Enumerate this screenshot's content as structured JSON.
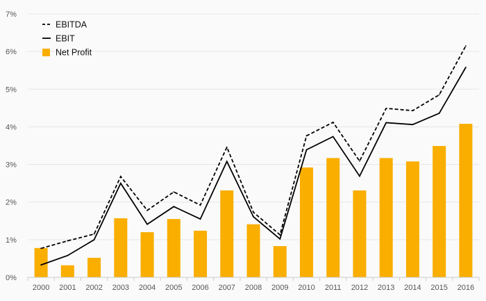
{
  "chart_data": {
    "type": "bar+line",
    "title": "",
    "xlabel": "",
    "ylabel": "",
    "categories": [
      "2000",
      "2001",
      "2002",
      "2003",
      "2004",
      "2005",
      "2006",
      "2007",
      "2008",
      "2009",
      "2010",
      "2011",
      "2012",
      "2013",
      "2014",
      "2015",
      "2016"
    ],
    "ylim": [
      0,
      7
    ],
    "yticks": [
      "0%",
      "1%",
      "2%",
      "3%",
      "4%",
      "5%",
      "6%",
      "7%"
    ],
    "grid": true,
    "legend_position": "top-left",
    "series": [
      {
        "name": "EBITDA",
        "kind": "line",
        "style": "dashed",
        "color": "#000000",
        "values": [
          0.77,
          0.97,
          1.15,
          2.68,
          1.78,
          2.27,
          1.92,
          3.46,
          1.73,
          1.13,
          3.76,
          4.12,
          3.09,
          4.49,
          4.43,
          4.85,
          6.15
        ]
      },
      {
        "name": "EBIT",
        "kind": "line",
        "style": "solid",
        "color": "#000000",
        "values": [
          0.33,
          0.58,
          1.0,
          2.5,
          1.41,
          1.88,
          1.55,
          3.08,
          1.61,
          1.02,
          3.39,
          3.74,
          2.69,
          4.11,
          4.06,
          4.36,
          5.58
        ]
      },
      {
        "name": "Net Profit",
        "kind": "bar",
        "color": "#f9ae00",
        "values": [
          0.78,
          0.32,
          0.52,
          1.57,
          1.2,
          1.55,
          1.24,
          2.31,
          1.41,
          0.83,
          2.92,
          3.17,
          2.31,
          3.17,
          3.08,
          3.49,
          4.08
        ]
      }
    ]
  }
}
